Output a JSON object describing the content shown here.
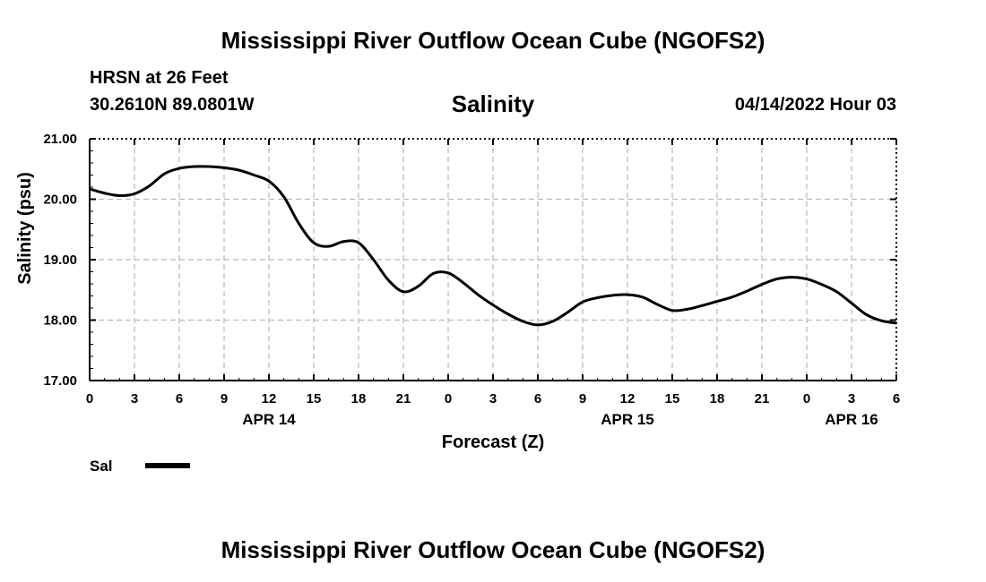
{
  "header": {
    "title": "Mississippi River Outflow Ocean Cube (NGOFS2)",
    "station": "HRSN at 26 Feet",
    "coords": "30.2610N  89.0801W",
    "datetime": "04/14/2022 Hour 03"
  },
  "footer": {
    "title": "Mississippi River Outflow Ocean Cube (NGOFS2)"
  },
  "chart_data": {
    "type": "line",
    "title": "Salinity",
    "xlabel": "Forecast (Z)",
    "ylabel": "Salinity (psu)",
    "xlim": [
      0,
      54
    ],
    "ylim": [
      17,
      21
    ],
    "grid": true,
    "x_ticks": [
      0,
      3,
      6,
      9,
      12,
      15,
      18,
      21,
      24,
      27,
      30,
      33,
      36,
      39,
      42,
      45,
      48,
      51,
      54
    ],
    "x_tick_labels": [
      "0",
      "3",
      "6",
      "9",
      "12",
      "15",
      "18",
      "21",
      "0",
      "3",
      "6",
      "9",
      "12",
      "15",
      "18",
      "21",
      "0",
      "3",
      "6"
    ],
    "y_ticks": [
      17,
      18,
      19,
      20,
      21
    ],
    "y_tick_labels": [
      "17.00",
      "18.00",
      "19.00",
      "20.00",
      "21.00"
    ],
    "date_labels": [
      {
        "x": 12,
        "label": "APR 14"
      },
      {
        "x": 36,
        "label": "APR 15"
      },
      {
        "x": 51,
        "label": "APR 16"
      }
    ],
    "legend": {
      "position": "bottom-left",
      "entries": [
        {
          "label": "Sal",
          "color": "#000000"
        }
      ]
    },
    "series": [
      {
        "name": "Sal",
        "color": "#000000",
        "x": [
          0,
          1,
          2,
          3,
          4,
          5,
          6,
          7,
          8,
          9,
          10,
          11,
          12,
          13,
          14,
          15,
          16,
          17,
          18,
          19,
          20,
          21,
          22,
          23,
          24,
          25,
          26,
          27,
          28,
          29,
          30,
          31,
          32,
          33,
          34,
          35,
          36,
          37,
          38,
          39,
          40,
          41,
          42,
          43,
          44,
          45,
          46,
          47,
          48,
          49,
          50,
          51,
          52,
          53,
          54
        ],
        "values": [
          20.17,
          20.1,
          20.06,
          20.09,
          20.22,
          20.42,
          20.51,
          20.54,
          20.54,
          20.52,
          20.48,
          20.4,
          20.3,
          20.04,
          19.6,
          19.28,
          19.22,
          19.3,
          19.28,
          19.0,
          18.66,
          18.47,
          18.56,
          18.77,
          18.78,
          18.62,
          18.42,
          18.25,
          18.1,
          17.98,
          17.92,
          17.98,
          18.13,
          18.3,
          18.37,
          18.41,
          18.42,
          18.38,
          18.26,
          18.16,
          18.18,
          18.24,
          18.31,
          18.38,
          18.48,
          18.59,
          18.68,
          18.71,
          18.68,
          18.59,
          18.47,
          18.28,
          18.09,
          17.99,
          17.95
        ]
      }
    ]
  }
}
